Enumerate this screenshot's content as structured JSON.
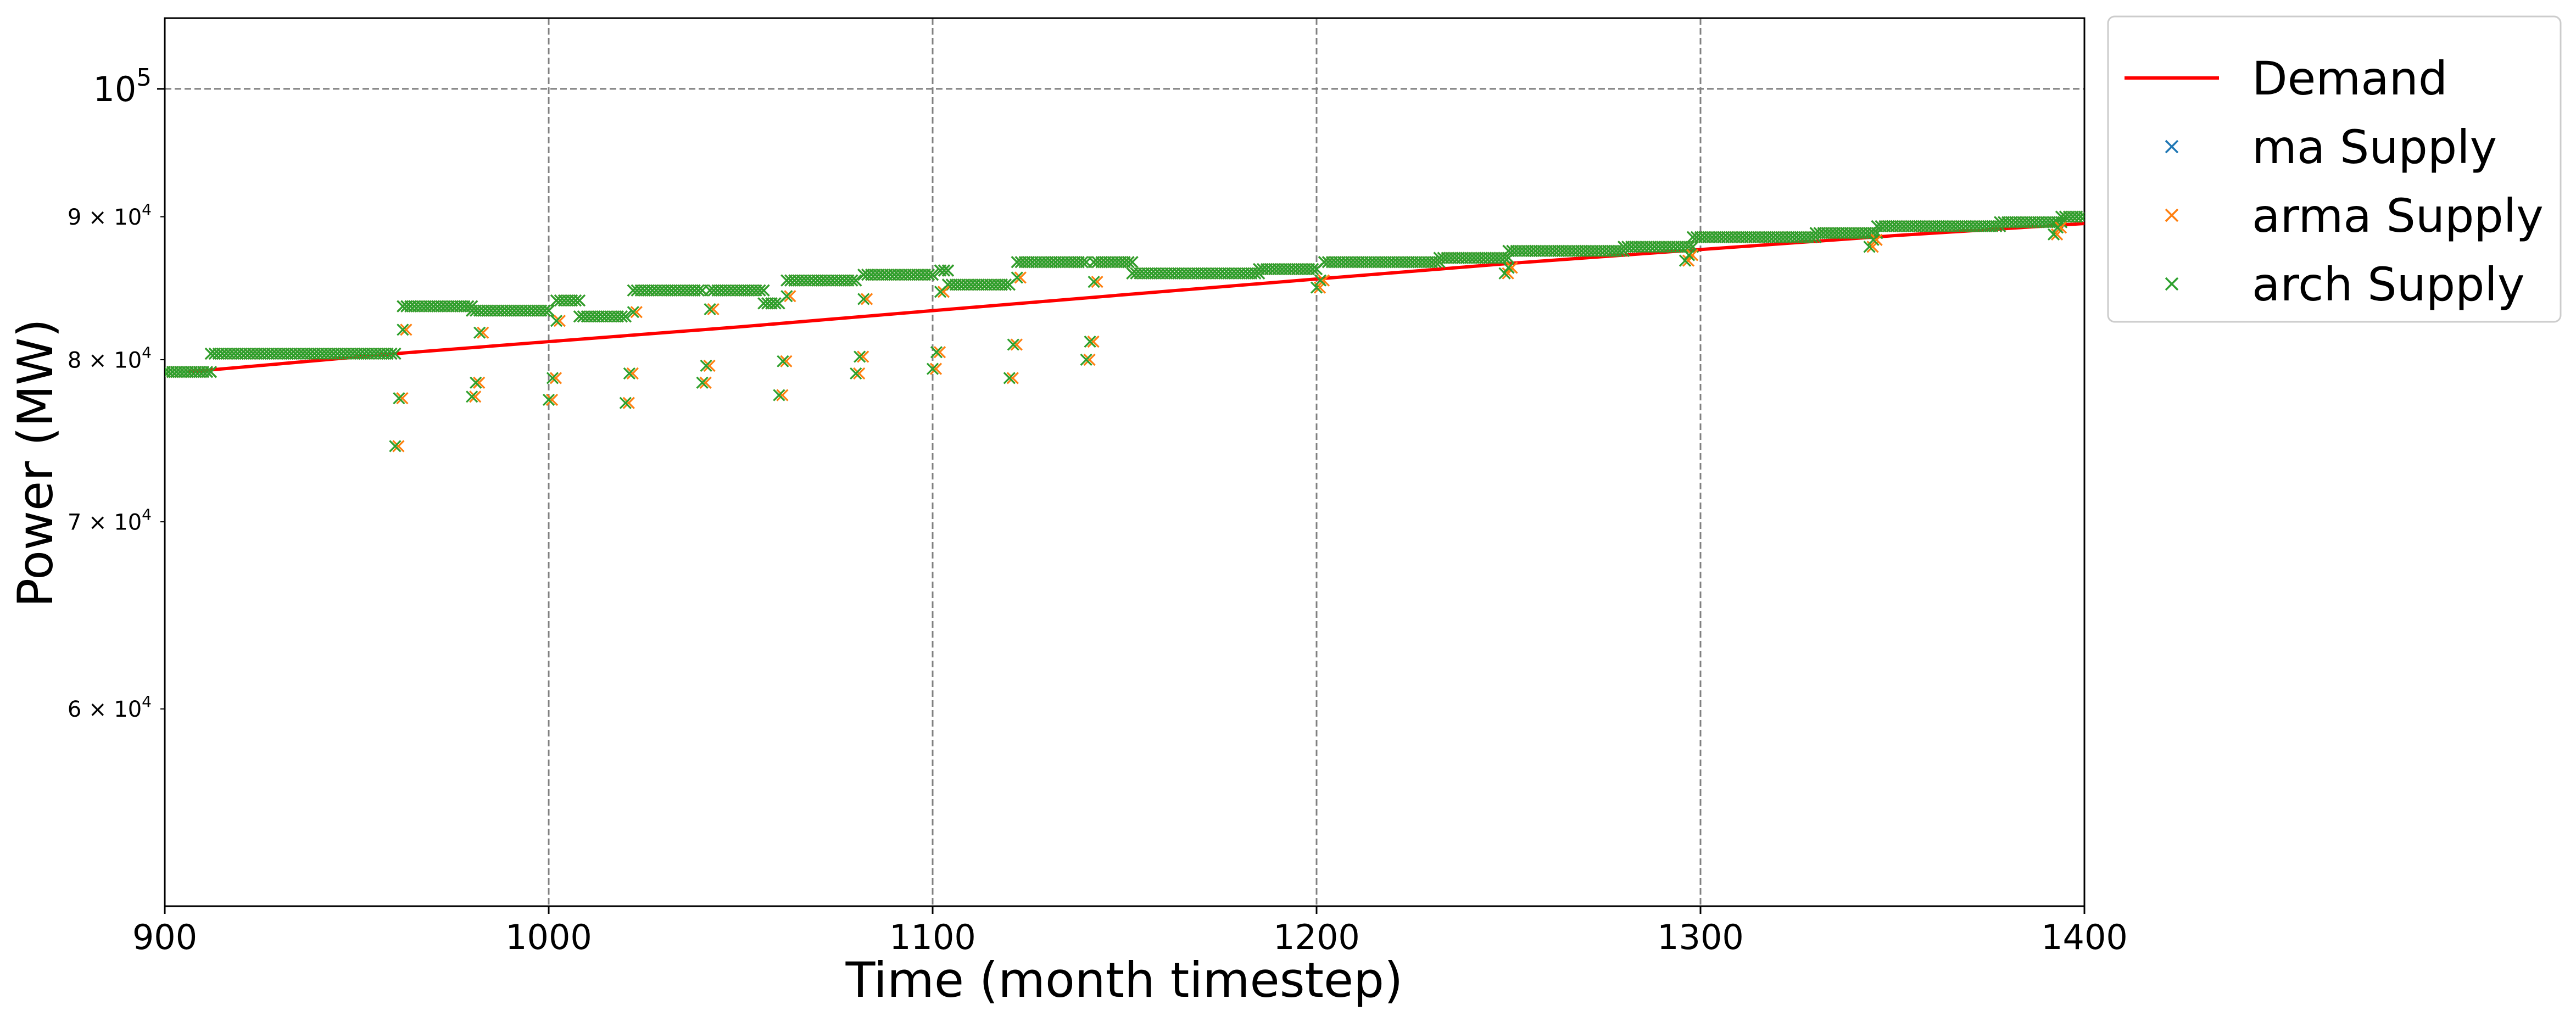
{
  "chart_data": {
    "type": "line+scatter",
    "title": "",
    "xlabel": "Time (month timestep)",
    "ylabel": "Power (MW)",
    "xlim": [
      900,
      1400
    ],
    "ylim": [
      51000,
      106000
    ],
    "yscale": "log",
    "grid": true,
    "legend_position": "outside top-right",
    "x_ticks": [
      {
        "value": 900,
        "label": "900"
      },
      {
        "value": 1000,
        "label": "1000"
      },
      {
        "value": 1100,
        "label": "1100"
      },
      {
        "value": 1200,
        "label": "1200"
      },
      {
        "value": 1300,
        "label": "1300"
      },
      {
        "value": 1400,
        "label": "1400"
      }
    ],
    "y_ticks": [
      {
        "value": 60000,
        "mantissa": "6",
        "base": "10",
        "exp": "4",
        "major": false
      },
      {
        "value": 70000,
        "mantissa": "7",
        "base": "10",
        "exp": "4",
        "major": false
      },
      {
        "value": 80000,
        "mantissa": "8",
        "base": "10",
        "exp": "4",
        "major": false
      },
      {
        "value": 90000,
        "mantissa": "9",
        "base": "10",
        "exp": "4",
        "major": false
      },
      {
        "value": 100000,
        "mantissa": "",
        "base": "10",
        "exp": "5",
        "major": true
      }
    ],
    "demand": {
      "name": "Demand",
      "color": "#ff0000",
      "x": [
        906,
        960,
        1000,
        1050,
        1100,
        1150,
        1200,
        1250,
        1300,
        1350,
        1400
      ],
      "y": [
        79200,
        80400,
        81200,
        82200,
        83300,
        84400,
        85500,
        86600,
        87600,
        88600,
        89500
      ]
    },
    "supply_steps": [
      {
        "x0": 900,
        "x1": 912,
        "y": 79200
      },
      {
        "x0": 912,
        "x1": 960,
        "y": 80400
      },
      {
        "x0": 962,
        "x1": 980,
        "y": 83600
      },
      {
        "x0": 980,
        "x1": 1000,
        "y": 83300
      },
      {
        "x0": 1002,
        "x1": 1008,
        "y": 84000
      },
      {
        "x0": 1008,
        "x1": 1020,
        "y": 82900
      },
      {
        "x0": 1022,
        "x1": 1040,
        "y": 84700
      },
      {
        "x0": 1042,
        "x1": 1056,
        "y": 84700
      },
      {
        "x0": 1056,
        "x1": 1060,
        "y": 83800
      },
      {
        "x0": 1062,
        "x1": 1080,
        "y": 85400
      },
      {
        "x0": 1082,
        "x1": 1100,
        "y": 85800
      },
      {
        "x0": 1102,
        "x1": 1104,
        "y": 86100
      },
      {
        "x0": 1104,
        "x1": 1120,
        "y": 85100
      },
      {
        "x0": 1122,
        "x1": 1140,
        "y": 86700
      },
      {
        "x0": 1142,
        "x1": 1152,
        "y": 86700
      },
      {
        "x0": 1152,
        "x1": 1185,
        "y": 85900
      },
      {
        "x0": 1185,
        "x1": 1200,
        "y": 86200
      },
      {
        "x0": 1202,
        "x1": 1232,
        "y": 86700
      },
      {
        "x0": 1232,
        "x1": 1250,
        "y": 87000
      },
      {
        "x0": 1250,
        "x1": 1280,
        "y": 87500
      },
      {
        "x0": 1280,
        "x1": 1298,
        "y": 87800
      },
      {
        "x0": 1298,
        "x1": 1330,
        "y": 88500
      },
      {
        "x0": 1330,
        "x1": 1346,
        "y": 88800
      },
      {
        "x0": 1346,
        "x1": 1378,
        "y": 89300
      },
      {
        "x0": 1378,
        "x1": 1394,
        "y": 89600
      },
      {
        "x0": 1394,
        "x1": 1400,
        "y": 90000
      }
    ],
    "outliers": [
      {
        "x": 960,
        "y": 74500
      },
      {
        "x": 961,
        "y": 77500
      },
      {
        "x": 962,
        "y": 82000
      },
      {
        "x": 980,
        "y": 77600
      },
      {
        "x": 981,
        "y": 78500
      },
      {
        "x": 982,
        "y": 81800
      },
      {
        "x": 1000,
        "y": 77400
      },
      {
        "x": 1001,
        "y": 78800
      },
      {
        "x": 1002,
        "y": 82600
      },
      {
        "x": 1020,
        "y": 77200
      },
      {
        "x": 1021,
        "y": 79100
      },
      {
        "x": 1022,
        "y": 83200
      },
      {
        "x": 1040,
        "y": 78500
      },
      {
        "x": 1041,
        "y": 79600
      },
      {
        "x": 1042,
        "y": 83400
      },
      {
        "x": 1060,
        "y": 77700
      },
      {
        "x": 1061,
        "y": 79900
      },
      {
        "x": 1062,
        "y": 84300
      },
      {
        "x": 1080,
        "y": 79100
      },
      {
        "x": 1081,
        "y": 80200
      },
      {
        "x": 1082,
        "y": 84100
      },
      {
        "x": 1100,
        "y": 79400
      },
      {
        "x": 1101,
        "y": 80500
      },
      {
        "x": 1102,
        "y": 84600
      },
      {
        "x": 1120,
        "y": 78800
      },
      {
        "x": 1121,
        "y": 81000
      },
      {
        "x": 1122,
        "y": 85600
      },
      {
        "x": 1140,
        "y": 80000
      },
      {
        "x": 1141,
        "y": 81200
      },
      {
        "x": 1142,
        "y": 85300
      },
      {
        "x": 1200,
        "y": 84900
      },
      {
        "x": 1201,
        "y": 85400
      },
      {
        "x": 1249,
        "y": 85900
      },
      {
        "x": 1250,
        "y": 86300
      },
      {
        "x": 1296,
        "y": 86800
      },
      {
        "x": 1297,
        "y": 87200
      },
      {
        "x": 1344,
        "y": 87800
      },
      {
        "x": 1345,
        "y": 88300
      },
      {
        "x": 1392,
        "y": 88700
      },
      {
        "x": 1393,
        "y": 89200
      }
    ],
    "series": [
      {
        "name": "Demand",
        "kind": "line",
        "color": "#ff0000"
      },
      {
        "name": "ma Supply",
        "kind": "scatter",
        "marker": "x",
        "color": "#1f77b4"
      },
      {
        "name": "arma Supply",
        "kind": "scatter",
        "marker": "x",
        "color": "#ff7f0e"
      },
      {
        "name": "arch Supply",
        "kind": "scatter",
        "marker": "x",
        "color": "#2ca02c"
      }
    ]
  }
}
